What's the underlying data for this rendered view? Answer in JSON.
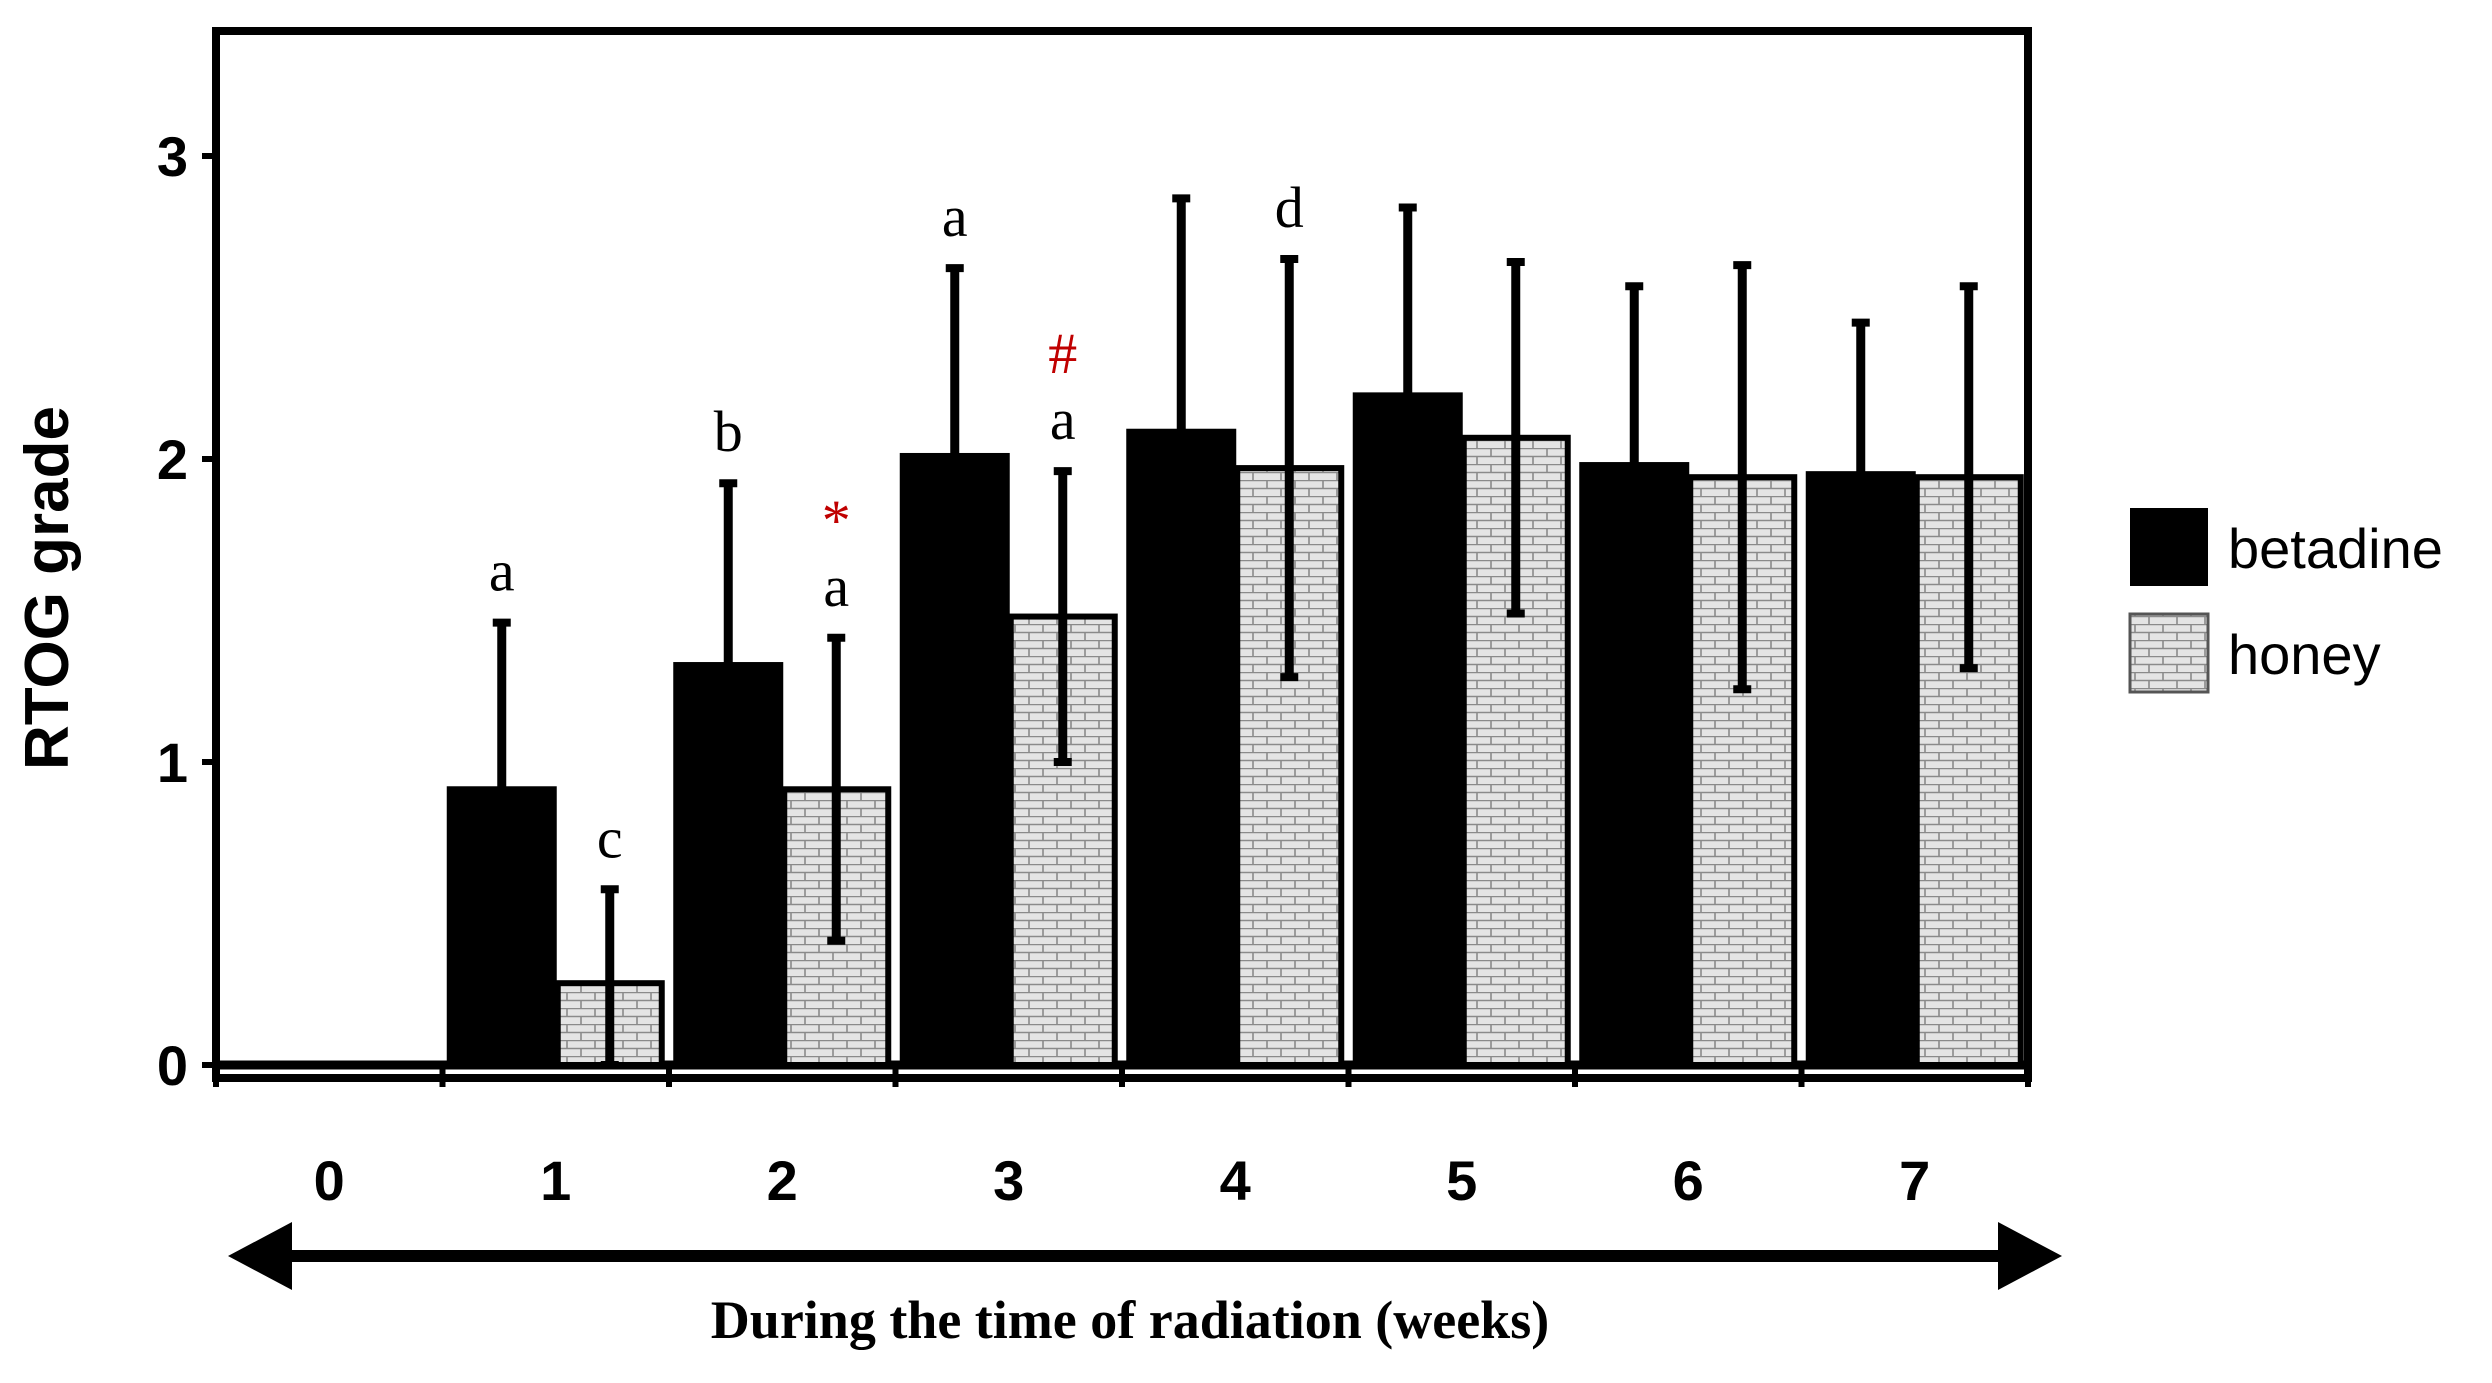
{
  "chart_data": {
    "type": "bar",
    "title": "",
    "ylabel": "RTOG grade",
    "xlabel": "During the time of radiation (weeks)",
    "ylim": [
      0,
      3.3
    ],
    "yticks": [
      "0",
      "1",
      "2",
      "3"
    ],
    "categories": [
      "0",
      "1",
      "2",
      "3",
      "4",
      "5",
      "6",
      "7"
    ],
    "series": [
      {
        "name": "betadine",
        "values": [
          0,
          0.91,
          1.32,
          2.01,
          2.09,
          2.21,
          1.98,
          1.95
        ],
        "error": [
          0,
          0.55,
          0.6,
          0.62,
          0.77,
          0.62,
          0.59,
          0.5
        ],
        "color": "#000000"
      },
      {
        "name": "honey",
        "values": [
          0,
          0.27,
          0.91,
          1.48,
          1.97,
          2.07,
          1.94,
          1.94
        ],
        "error": [
          0,
          0.31,
          0.5,
          0.48,
          0.69,
          0.58,
          0.7,
          0.63
        ],
        "color": "#cfcfcf"
      }
    ],
    "annotations": [
      {
        "category": "1",
        "series": "betadine",
        "text": "a",
        "color": "#000000"
      },
      {
        "category": "1",
        "series": "honey",
        "text": "c",
        "color": "#000000"
      },
      {
        "category": "2",
        "series": "betadine",
        "text": "b",
        "color": "#000000"
      },
      {
        "category": "2",
        "series": "honey",
        "text": "a",
        "color": "#000000",
        "marker": "*",
        "marker_color": "#c00000"
      },
      {
        "category": "3",
        "series": "betadine",
        "text": "a",
        "color": "#000000"
      },
      {
        "category": "3",
        "series": "honey",
        "text": "a",
        "color": "#000000",
        "marker": "#",
        "marker_color": "#c00000"
      },
      {
        "category": "4",
        "series": "honey",
        "text": "d",
        "color": "#000000"
      }
    ],
    "legend": {
      "position": "right",
      "entries": [
        "betadine",
        "honey"
      ]
    },
    "grid": false
  }
}
